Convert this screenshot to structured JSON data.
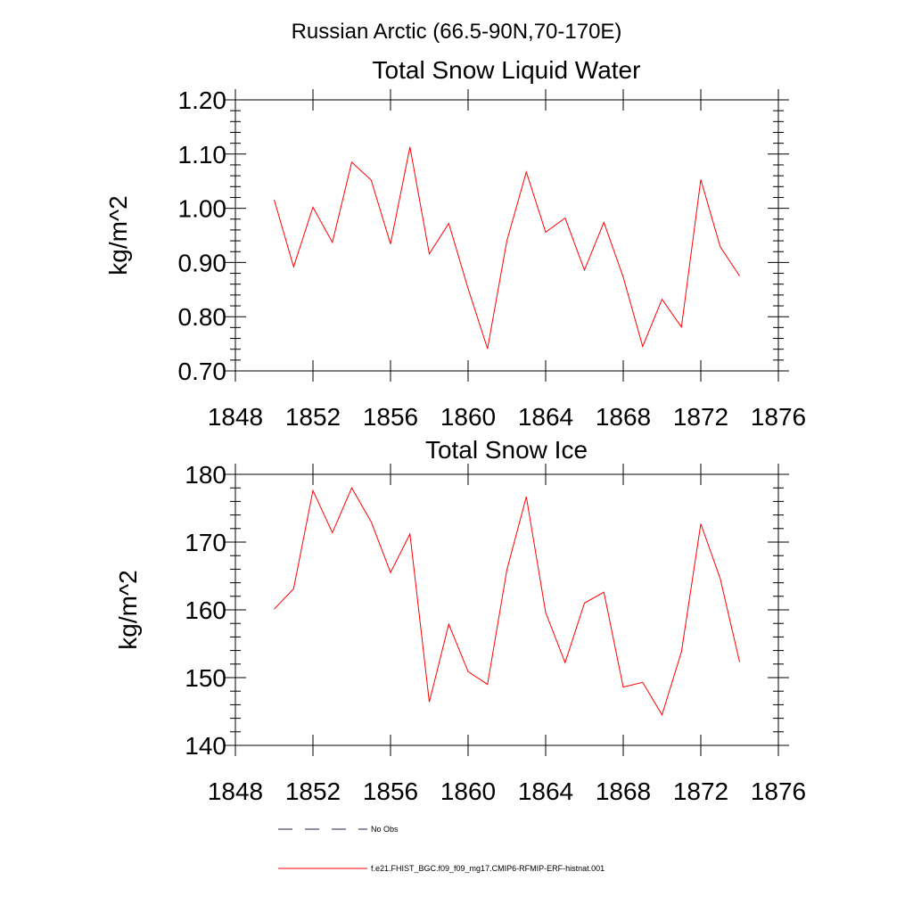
{
  "main_title": "Russian Arctic (66.5-90N,70-170E)",
  "chart_data": [
    {
      "type": "line",
      "title": "Total Snow Liquid Water",
      "xlabel": "",
      "ylabel": "kg/m^2",
      "xlim": [
        1848,
        1876
      ],
      "ylim": [
        0.7,
        1.2
      ],
      "xticks": [
        1848,
        1852,
        1856,
        1860,
        1864,
        1868,
        1872,
        1876
      ],
      "xtick_labels": [
        "1848",
        "1852",
        "1856",
        "1860",
        "1864",
        "1868",
        "1872",
        "1876"
      ],
      "yticks": [
        0.7,
        0.8,
        0.9,
        1.0,
        1.1,
        1.2
      ],
      "ytick_labels": [
        "0.70",
        "0.80",
        "0.90",
        "1.00",
        "1.10",
        "1.20"
      ],
      "x": [
        1850,
        1851,
        1852,
        1853,
        1854,
        1855,
        1856,
        1857,
        1858,
        1859,
        1860,
        1861,
        1862,
        1863,
        1864,
        1865,
        1866,
        1867,
        1868,
        1869,
        1870,
        1871,
        1872,
        1873,
        1874
      ],
      "series": [
        {
          "name": "f.e21.FHIST_BGC.f09_f09_mg17.CMIP6-RFMIP-ERF-histnat.001",
          "color": "#ff0000",
          "values": [
            1.016,
            0.892,
            1.002,
            0.937,
            1.085,
            1.052,
            0.934,
            1.113,
            0.916,
            0.972,
            0.852,
            0.741,
            0.94,
            1.067,
            0.956,
            0.982,
            0.886,
            0.974,
            0.873,
            0.745,
            0.832,
            0.781,
            1.053,
            0.929,
            0.875
          ]
        }
      ]
    },
    {
      "type": "line",
      "title": "Total Snow Ice",
      "xlabel": "",
      "ylabel": "kg/m^2",
      "xlim": [
        1848,
        1876
      ],
      "ylim": [
        140,
        180
      ],
      "xticks": [
        1848,
        1852,
        1856,
        1860,
        1864,
        1868,
        1872,
        1876
      ],
      "xtick_labels": [
        "1848",
        "1852",
        "1856",
        "1860",
        "1864",
        "1868",
        "1872",
        "1876"
      ],
      "yticks": [
        140,
        150,
        160,
        170,
        180
      ],
      "ytick_labels": [
        "140",
        "150",
        "160",
        "170",
        "180"
      ],
      "x": [
        1850,
        1851,
        1852,
        1853,
        1854,
        1855,
        1856,
        1857,
        1858,
        1859,
        1860,
        1861,
        1862,
        1863,
        1864,
        1865,
        1866,
        1867,
        1868,
        1869,
        1870,
        1871,
        1872,
        1873,
        1874
      ],
      "series": [
        {
          "name": "f.e21.FHIST_BGC.f09_f09_mg17.CMIP6-RFMIP-ERF-histnat.001",
          "color": "#ff0000",
          "values": [
            160.1,
            163.1,
            177.6,
            171.4,
            178.0,
            173.0,
            165.5,
            171.2,
            146.4,
            157.9,
            150.9,
            149.0,
            165.9,
            176.7,
            159.6,
            152.2,
            161.0,
            162.6,
            148.6,
            149.3,
            144.5,
            153.8,
            172.7,
            164.6,
            152.3
          ]
        }
      ]
    }
  ],
  "legend": [
    {
      "label": "No Obs",
      "color": "#1f1f5a",
      "style": "dashed"
    },
    {
      "label": "f.e21.FHIST_BGC.f09_f09_mg17.CMIP6-RFMIP-ERF-histnat.001",
      "color": "#ff0000",
      "style": "solid"
    }
  ]
}
